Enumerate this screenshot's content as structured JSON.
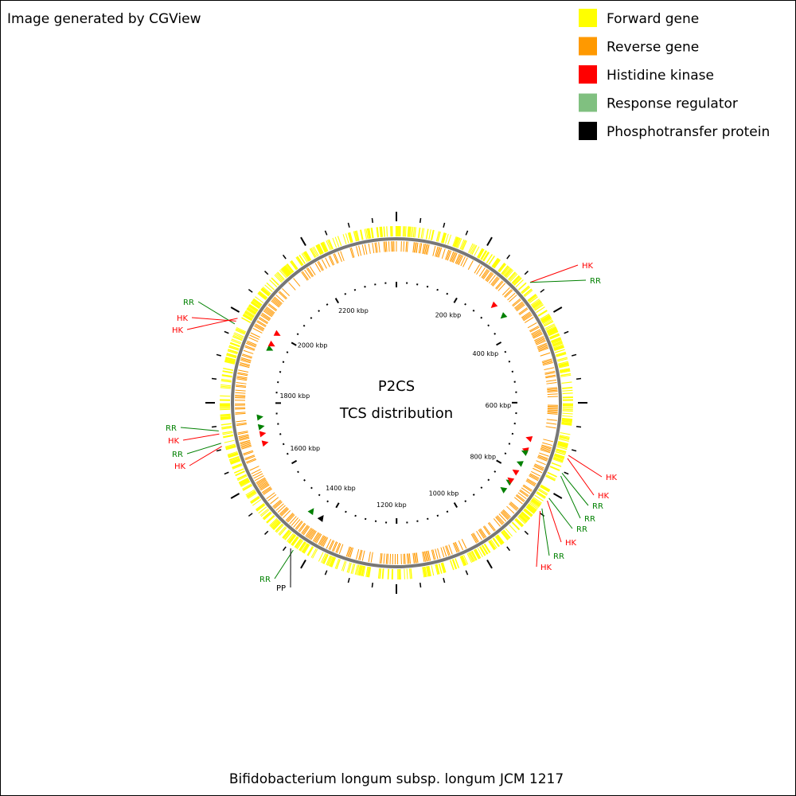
{
  "header": {
    "title": "Image generated by CGView"
  },
  "legend": {
    "items": [
      {
        "label": "Forward gene",
        "color": "#ffff00"
      },
      {
        "label": "Reverse gene",
        "color": "#ff9900"
      },
      {
        "label": "Histidine kinase",
        "color": "#ff0000"
      },
      {
        "label": "Response regulator",
        "color": "#80c080"
      },
      {
        "label": "Phosphotransfer protein",
        "color": "#000000"
      }
    ]
  },
  "center": {
    "title": "P2CS",
    "subtitle": "TCS distribution"
  },
  "scale_labels": [
    "200 kbp",
    "400 kbp",
    "600 kbp",
    "800 kbp",
    "1000 kbp",
    "1200 kbp",
    "1400 kbp",
    "1600 kbp",
    "1800 kbp",
    "2000 kbp",
    "2200 kbp"
  ],
  "features": [
    {
      "label": "HK"
    },
    {
      "label": "RR"
    },
    {
      "label": "RR"
    },
    {
      "label": "HK"
    },
    {
      "label": "HK"
    },
    {
      "label": "RR"
    },
    {
      "label": "HK"
    },
    {
      "label": "RR"
    },
    {
      "label": "HK"
    },
    {
      "label": "RR"
    },
    {
      "label": "PP"
    },
    {
      "label": "HK"
    },
    {
      "label": "HK"
    },
    {
      "label": "RR"
    },
    {
      "label": "RR"
    },
    {
      "label": "RR"
    },
    {
      "label": "HK"
    },
    {
      "label": "RR"
    },
    {
      "label": "HK"
    }
  ],
  "footer": {
    "caption": "Bifidobacterium longum subsp. longum JCM 1217"
  }
}
